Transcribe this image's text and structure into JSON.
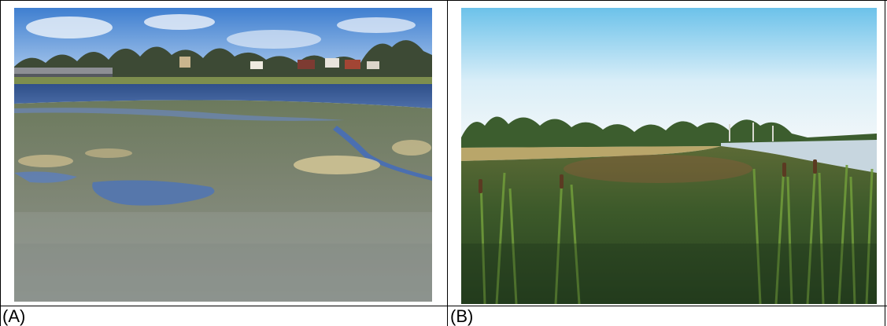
{
  "panels": [
    {
      "label": "(A)",
      "subject": "shoreline-mudflat-photo"
    },
    {
      "label": "(B)",
      "subject": "reed-wetland-photo"
    }
  ]
}
